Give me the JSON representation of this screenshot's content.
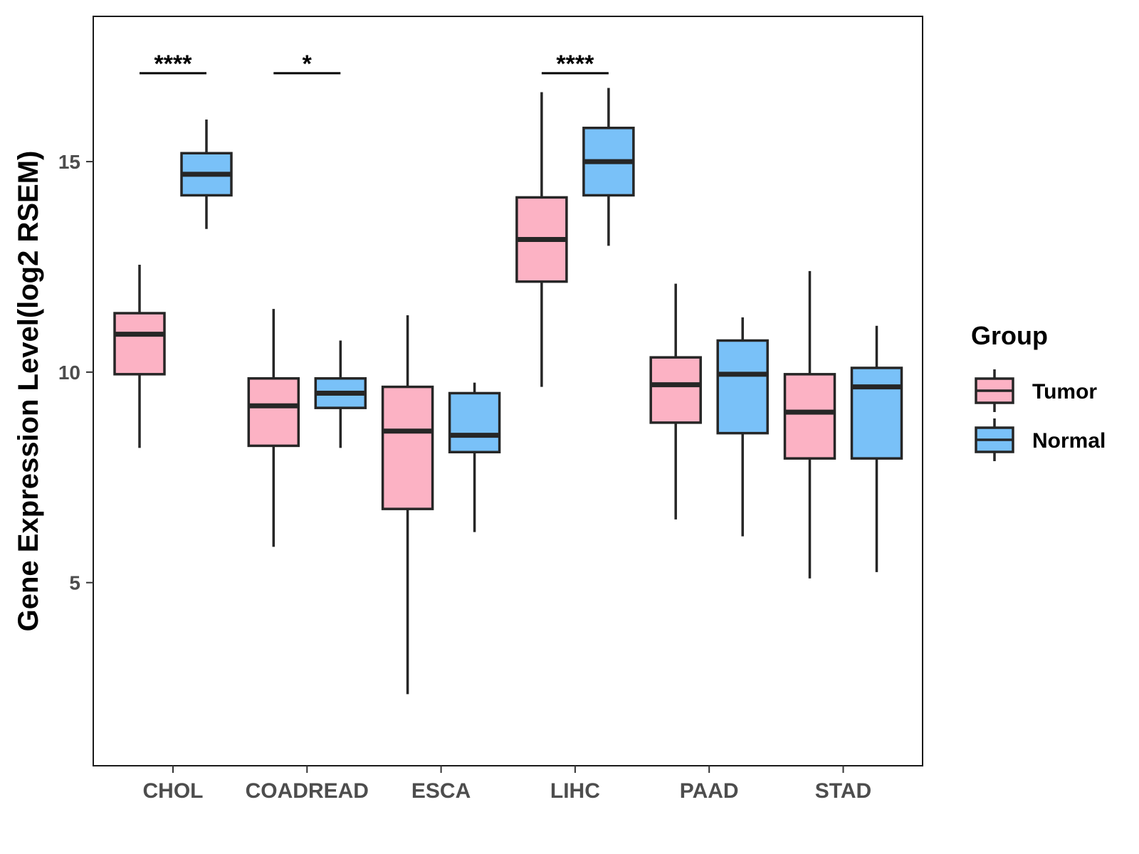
{
  "chart_data": {
    "type": "boxplot",
    "title": "",
    "xlabel": "",
    "ylabel": "Gene Expression Level(log2 RSEM)",
    "ylim": [
      0.65,
      18.45
    ],
    "yticks": [
      5,
      10,
      15
    ],
    "categories": [
      "CHOL",
      "COADREAD",
      "ESCA",
      "LIHC",
      "PAAD",
      "STAD"
    ],
    "legend": {
      "title": "Group",
      "position": "right",
      "entries": [
        {
          "name": "Tumor",
          "color": "#fcb2c4"
        },
        {
          "name": "Normal",
          "color": "#79c1f8"
        }
      ]
    },
    "series": [
      {
        "name": "Tumor",
        "color": "#fcb2c4",
        "boxes": [
          {
            "category": "CHOL",
            "whisker_low": 8.2,
            "q1": 9.95,
            "median": 10.9,
            "q3": 11.4,
            "whisker_high": 12.55
          },
          {
            "category": "COADREAD",
            "whisker_low": 5.85,
            "q1": 8.25,
            "median": 9.2,
            "q3": 9.85,
            "whisker_high": 11.5
          },
          {
            "category": "ESCA",
            "whisker_low": 2.35,
            "q1": 6.75,
            "median": 8.6,
            "q3": 9.65,
            "whisker_high": 11.35
          },
          {
            "category": "LIHC",
            "whisker_low": 9.65,
            "q1": 12.15,
            "median": 13.15,
            "q3": 14.15,
            "whisker_high": 16.65
          },
          {
            "category": "PAAD",
            "whisker_low": 6.5,
            "q1": 8.8,
            "median": 9.7,
            "q3": 10.35,
            "whisker_high": 12.1
          },
          {
            "category": "STAD",
            "whisker_low": 5.1,
            "q1": 7.95,
            "median": 9.05,
            "q3": 9.95,
            "whisker_high": 12.4
          }
        ]
      },
      {
        "name": "Normal",
        "color": "#79c1f8",
        "boxes": [
          {
            "category": "CHOL",
            "whisker_low": 13.4,
            "q1": 14.2,
            "median": 14.7,
            "q3": 15.2,
            "whisker_high": 16.0
          },
          {
            "category": "COADREAD",
            "whisker_low": 8.2,
            "q1": 9.15,
            "median": 9.5,
            "q3": 9.85,
            "whisker_high": 10.75
          },
          {
            "category": "ESCA",
            "whisker_low": 6.2,
            "q1": 8.1,
            "median": 8.5,
            "q3": 9.5,
            "whisker_high": 9.75
          },
          {
            "category": "LIHC",
            "whisker_low": 13.0,
            "q1": 14.2,
            "median": 15.0,
            "q3": 15.8,
            "whisker_high": 16.75
          },
          {
            "category": "PAAD",
            "whisker_low": 6.1,
            "q1": 8.55,
            "median": 9.95,
            "q3": 10.75,
            "whisker_high": 11.3
          },
          {
            "category": "STAD",
            "whisker_low": 5.25,
            "q1": 7.95,
            "median": 9.65,
            "q3": 10.1,
            "whisker_high": 11.1
          }
        ]
      }
    ],
    "annotations": [
      {
        "category": "CHOL",
        "label": "****",
        "y": 17.1
      },
      {
        "category": "COADREAD",
        "label": "*",
        "y": 17.1
      },
      {
        "category": "LIHC",
        "label": "****",
        "y": 17.1
      }
    ]
  }
}
